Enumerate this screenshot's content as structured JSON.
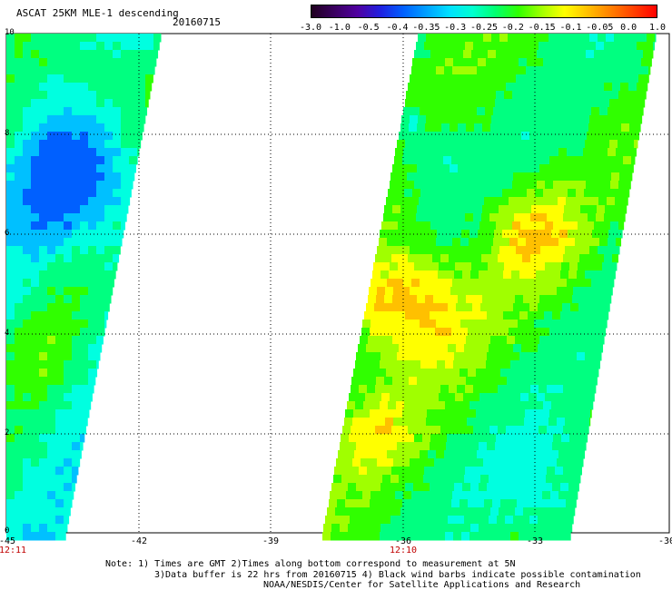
{
  "header": {
    "title": "ASCAT 25KM MLE-1 descending",
    "date": "20160715"
  },
  "colorbar": {
    "labels": [
      "-3.0",
      "-1.0",
      "-0.5",
      "-0.4",
      "-0.35",
      "-0.3",
      "-0.25",
      "-0.2",
      "-0.15",
      "-0.1",
      "-0.05",
      "0.0",
      "1.0"
    ],
    "colors": [
      "#200020",
      "#3a0060",
      "#5000a0",
      "#2020e0",
      "#0060ff",
      "#00a0ff",
      "#00e0ff",
      "#00ffd0",
      "#00ff70",
      "#30ff00",
      "#a0ff00",
      "#ffff00",
      "#ffc000",
      "#ff8000",
      "#ff4000",
      "#ff0000"
    ]
  },
  "axes": {
    "y_labels": [
      "10",
      "8",
      "6",
      "4",
      "2",
      "0"
    ],
    "x_labels": [
      "-45",
      "-42",
      "-39",
      "-36",
      "-33",
      "-30"
    ],
    "pass_times": [
      "12:11",
      "12:10"
    ]
  },
  "notes": {
    "line1": "Note: 1) Times are GMT 2)Times along bottom correspond to measurement at 5N",
    "line2": "3)Data buffer is 22 hrs from 20160715 4) Black wind barbs indicate possible contamination",
    "line3": "NOAA/NESDIS/Center for Satellite Applications and Research"
  }
}
